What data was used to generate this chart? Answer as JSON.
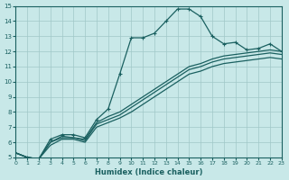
{
  "xlabel": "Humidex (Indice chaleur)",
  "bg_color": "#c8e8e8",
  "grid_color": "#a0c8c8",
  "line_color": "#1a6060",
  "xlim": [
    0,
    23
  ],
  "ylim": [
    5,
    15
  ],
  "xticks": [
    0,
    1,
    2,
    3,
    4,
    5,
    6,
    7,
    8,
    9,
    10,
    11,
    12,
    13,
    14,
    15,
    16,
    17,
    18,
    19,
    20,
    21,
    22,
    23
  ],
  "yticks": [
    5,
    6,
    7,
    8,
    9,
    10,
    11,
    12,
    13,
    14,
    15
  ],
  "lines": [
    {
      "x": [
        0,
        1,
        2,
        3,
        4,
        5,
        6,
        7,
        8,
        9,
        10,
        11,
        12,
        13,
        14,
        15,
        16,
        17,
        18,
        19,
        20,
        21,
        22,
        23
      ],
      "y": [
        5.3,
        5.0,
        4.9,
        6.2,
        6.5,
        6.5,
        6.3,
        7.5,
        8.2,
        10.5,
        12.9,
        12.9,
        13.2,
        14.0,
        14.8,
        14.8,
        14.3,
        13.0,
        12.5,
        12.6,
        12.1,
        12.2,
        12.5,
        12.0
      ],
      "marker": true
    },
    {
      "x": [
        0,
        1,
        2,
        3,
        4,
        5,
        6,
        7,
        8,
        9,
        10,
        11,
        12,
        13,
        14,
        15,
        16,
        17,
        18,
        19,
        20,
        21,
        22,
        23
      ],
      "y": [
        5.3,
        5.0,
        4.9,
        6.0,
        6.4,
        6.3,
        6.2,
        7.3,
        7.7,
        8.0,
        8.5,
        9.0,
        9.5,
        10.0,
        10.5,
        11.0,
        11.2,
        11.5,
        11.7,
        11.8,
        11.9,
        12.0,
        12.1,
        12.0
      ],
      "marker": false
    },
    {
      "x": [
        0,
        1,
        2,
        3,
        4,
        5,
        6,
        7,
        8,
        9,
        10,
        11,
        12,
        13,
        14,
        15,
        16,
        17,
        18,
        19,
        20,
        21,
        22,
        23
      ],
      "y": [
        5.3,
        5.0,
        4.9,
        6.0,
        6.3,
        6.3,
        6.1,
        7.2,
        7.5,
        7.8,
        8.3,
        8.8,
        9.3,
        9.8,
        10.3,
        10.8,
        11.0,
        11.3,
        11.5,
        11.6,
        11.7,
        11.8,
        11.9,
        11.8
      ],
      "marker": false
    },
    {
      "x": [
        0,
        1,
        2,
        3,
        4,
        5,
        6,
        7,
        8,
        9,
        10,
        11,
        12,
        13,
        14,
        15,
        16,
        17,
        18,
        19,
        20,
        21,
        22,
        23
      ],
      "y": [
        5.3,
        5.0,
        4.9,
        5.8,
        6.2,
        6.2,
        6.0,
        7.0,
        7.3,
        7.6,
        8.0,
        8.5,
        9.0,
        9.5,
        10.0,
        10.5,
        10.7,
        11.0,
        11.2,
        11.3,
        11.4,
        11.5,
        11.6,
        11.5
      ],
      "marker": false
    }
  ]
}
